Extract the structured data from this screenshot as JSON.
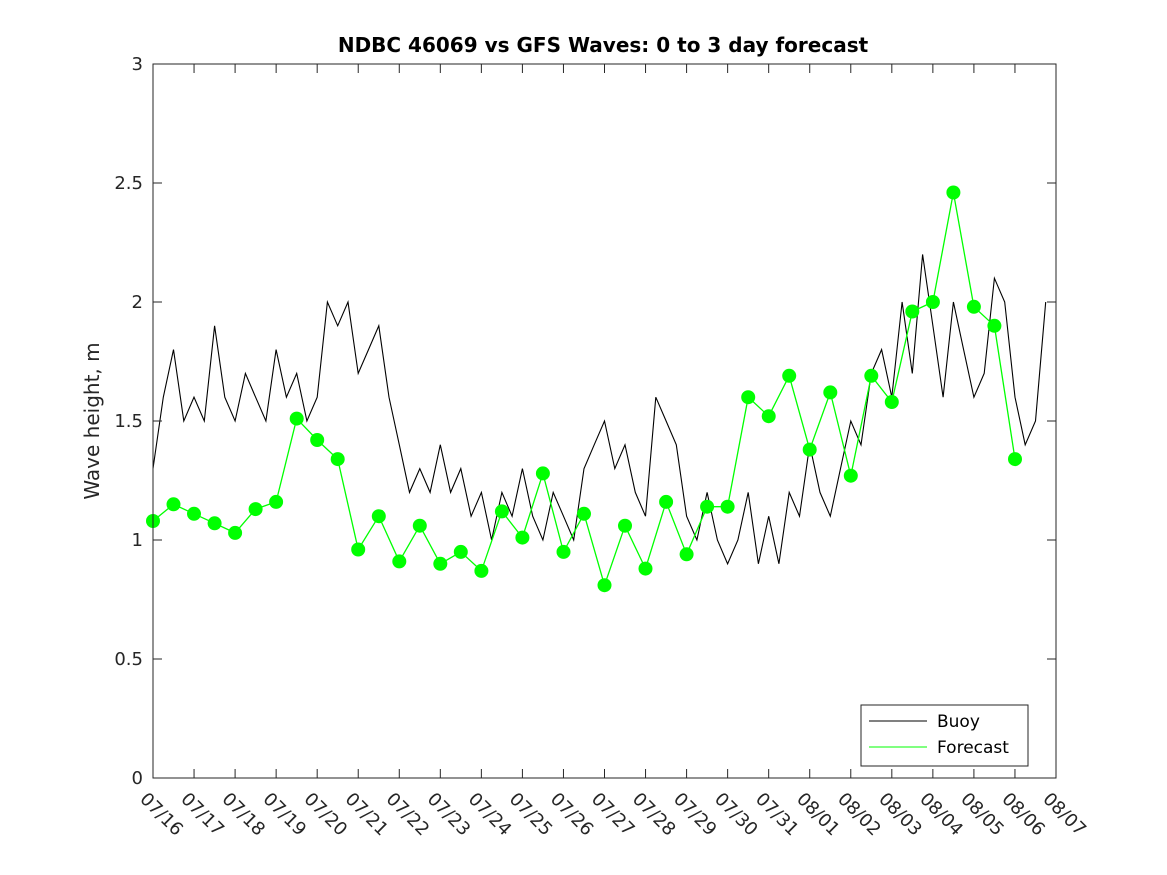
{
  "chart_data": {
    "type": "line",
    "title": "NDBC 46069 vs GFS Waves: 0 to 3 day forecast",
    "xlabel": "",
    "ylabel": "Wave height, m",
    "ylim": [
      0,
      3
    ],
    "yticks": [
      "0",
      "0.5",
      "1",
      "1.5",
      "2",
      "2.5",
      "3"
    ],
    "xticks": [
      "07/16",
      "07/17",
      "07/18",
      "07/19",
      "07/20",
      "07/21",
      "07/22",
      "07/23",
      "07/24",
      "07/25",
      "07/26",
      "07/27",
      "07/28",
      "07/29",
      "07/30",
      "07/31",
      "08/01",
      "08/02",
      "08/03",
      "08/04",
      "08/05",
      "08/06",
      "08/07"
    ],
    "x_start_label": "07/16",
    "grid": false,
    "legend_position": "bottom-right",
    "colors": {
      "buoy": "#000000",
      "forecast": "#00ff00"
    },
    "series": [
      {
        "name": "Buoy",
        "x": [
          "07/16 00:00",
          "07/16 06:00",
          "07/16 12:00",
          "07/16 18:00",
          "07/17 00:00",
          "07/17 06:00",
          "07/17 12:00",
          "07/17 18:00",
          "07/18 00:00",
          "07/18 06:00",
          "07/18 12:00",
          "07/18 18:00",
          "07/19 00:00",
          "07/19 06:00",
          "07/19 12:00",
          "07/19 18:00",
          "07/20 00:00",
          "07/20 06:00",
          "07/20 12:00",
          "07/20 18:00",
          "07/21 00:00",
          "07/21 06:00",
          "07/21 12:00",
          "07/21 18:00",
          "07/22 00:00",
          "07/22 06:00",
          "07/22 12:00",
          "07/22 18:00",
          "07/23 00:00",
          "07/23 06:00",
          "07/23 12:00",
          "07/23 18:00",
          "07/24 00:00",
          "07/24 06:00",
          "07/24 12:00",
          "07/24 18:00",
          "07/25 00:00",
          "07/25 06:00",
          "07/25 12:00",
          "07/25 18:00",
          "07/26 00:00",
          "07/26 06:00",
          "07/26 12:00",
          "07/26 18:00",
          "07/27 00:00",
          "07/27 06:00",
          "07/27 12:00",
          "07/27 18:00",
          "07/28 00:00",
          "07/28 06:00",
          "07/28 12:00",
          "07/28 18:00",
          "07/29 00:00",
          "07/29 06:00",
          "07/29 12:00",
          "07/29 18:00",
          "07/30 00:00",
          "07/30 06:00",
          "07/30 12:00",
          "07/30 18:00",
          "07/31 00:00",
          "07/31 06:00",
          "07/31 12:00",
          "07/31 18:00",
          "08/01 00:00",
          "08/01 06:00",
          "08/01 12:00",
          "08/01 18:00",
          "08/02 00:00",
          "08/02 06:00",
          "08/02 12:00",
          "08/02 18:00",
          "08/03 00:00",
          "08/03 06:00",
          "08/03 12:00",
          "08/03 18:00",
          "08/04 00:00",
          "08/04 06:00",
          "08/04 12:00",
          "08/04 18:00",
          "08/05 00:00",
          "08/05 06:00",
          "08/05 12:00",
          "08/05 18:00",
          "08/06 00:00",
          "08/06 06:00",
          "08/06 12:00",
          "08/06 18:00"
        ],
        "y": [
          1.3,
          1.6,
          1.8,
          1.5,
          1.6,
          1.5,
          1.9,
          1.6,
          1.5,
          1.7,
          1.6,
          1.5,
          1.8,
          1.6,
          1.7,
          1.5,
          1.6,
          2.0,
          1.9,
          2.0,
          1.7,
          1.8,
          1.9,
          1.6,
          1.4,
          1.2,
          1.3,
          1.2,
          1.4,
          1.2,
          1.3,
          1.1,
          1.2,
          1.0,
          1.2,
          1.1,
          1.3,
          1.1,
          1.0,
          1.2,
          1.1,
          1.0,
          1.3,
          1.4,
          1.5,
          1.3,
          1.4,
          1.2,
          1.1,
          1.6,
          1.5,
          1.4,
          1.1,
          1.0,
          1.2,
          1.0,
          0.9,
          1.0,
          1.2,
          0.9,
          1.1,
          0.9,
          1.2,
          1.1,
          1.4,
          1.2,
          1.1,
          1.3,
          1.5,
          1.4,
          1.7,
          1.8,
          1.6,
          2.0,
          1.7,
          2.2,
          1.9,
          1.6,
          2.0,
          1.8,
          1.6,
          1.7,
          2.1,
          2.0,
          1.6,
          1.4,
          1.5,
          2.0
        ],
        "values_note": ""
      },
      {
        "name": "Forecast",
        "x": [
          "07/16 00:00",
          "07/16 12:00",
          "07/17 00:00",
          "07/17 12:00",
          "07/18 00:00",
          "07/18 12:00",
          "07/19 00:00",
          "07/19 12:00",
          "07/20 00:00",
          "07/20 12:00",
          "07/21 00:00",
          "07/21 12:00",
          "07/22 00:00",
          "07/22 12:00",
          "07/23 00:00",
          "07/23 12:00",
          "07/24 00:00",
          "07/24 12:00",
          "07/25 00:00",
          "07/25 12:00",
          "07/26 00:00",
          "07/26 12:00",
          "07/27 00:00",
          "07/27 12:00",
          "07/28 00:00",
          "07/28 12:00",
          "07/29 00:00",
          "07/29 12:00",
          "07/30 00:00",
          "07/30 12:00",
          "07/31 00:00",
          "07/31 12:00",
          "08/01 00:00",
          "08/01 12:00",
          "08/02 00:00",
          "08/02 12:00",
          "08/03 00:00",
          "08/03 12:00",
          "08/04 00:00",
          "08/04 12:00",
          "08/05 00:00",
          "08/05 12:00",
          "08/06 00:00"
        ],
        "y": [
          1.08,
          1.15,
          1.11,
          1.07,
          1.03,
          1.13,
          1.16,
          1.51,
          1.42,
          1.34,
          0.96,
          1.1,
          0.91,
          1.06,
          0.9,
          0.95,
          0.87,
          1.12,
          1.01,
          1.28,
          0.95,
          1.11,
          0.81,
          1.06,
          0.88,
          1.16,
          0.94,
          1.14,
          1.14,
          1.6,
          1.52,
          1.69,
          1.38,
          1.62,
          1.27,
          1.69,
          1.58,
          1.96,
          2.0,
          2.46,
          1.98,
          1.9,
          1.34
        ]
      }
    ]
  }
}
